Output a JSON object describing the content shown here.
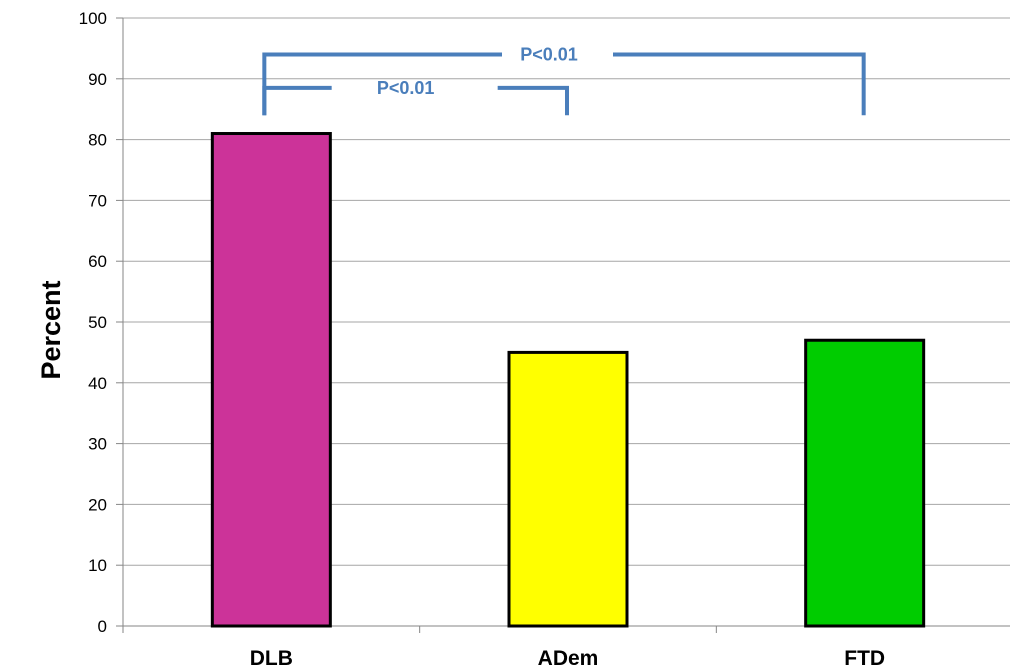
{
  "chart_data": {
    "type": "bar",
    "categories": [
      "DLB",
      "ADem",
      "FTD"
    ],
    "values": [
      81,
      45,
      47
    ],
    "bar_colors": [
      "#cc3399",
      "#ffff00",
      "#00cc00"
    ],
    "xlabel": "",
    "ylabel": "Percent",
    "ylim": [
      0,
      100
    ],
    "yticks": [
      0,
      10,
      20,
      30,
      40,
      50,
      60,
      70,
      80,
      90,
      100
    ],
    "grid": true,
    "annotations": [
      {
        "text": "P<0.01",
        "from": "DLB",
        "to": "FTD",
        "color": "#4a7ebb"
      },
      {
        "text": "P<0.01",
        "from": "DLB",
        "to": "ADem",
        "color": "#4a7ebb"
      }
    ]
  }
}
